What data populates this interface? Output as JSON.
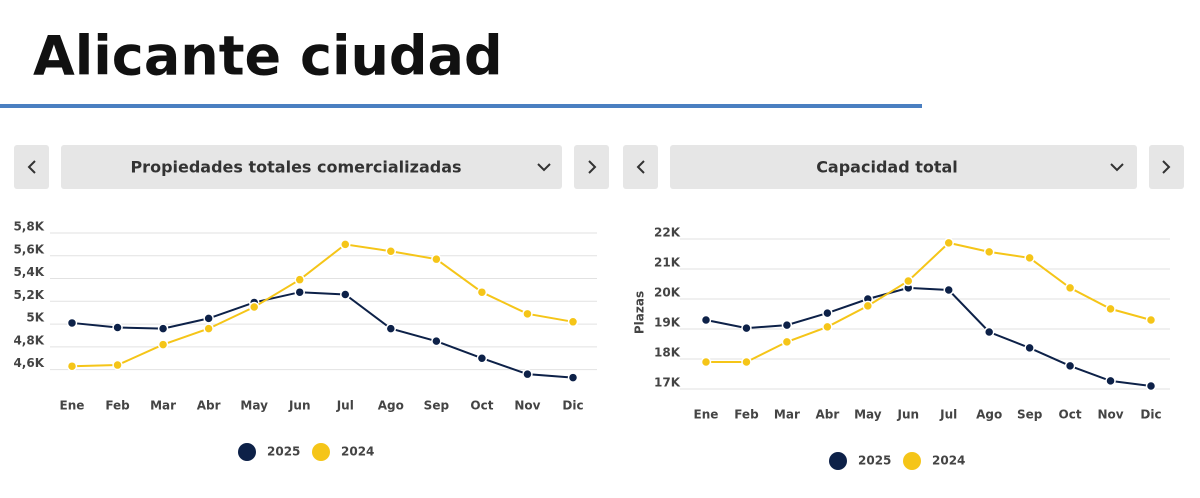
{
  "title": "Alicante ciudad",
  "chart_data": [
    {
      "type": "line",
      "title": "Propiedades totales comercializadas",
      "categories": [
        "Ene",
        "Feb",
        "Mar",
        "Abr",
        "May",
        "Jun",
        "Jul",
        "Ago",
        "Sep",
        "Oct",
        "Nov",
        "Dic"
      ],
      "series": [
        {
          "name": "2025",
          "color": "#0d2148",
          "values": [
            5010,
            4970,
            4960,
            5050,
            5190,
            5280,
            5260,
            4960,
            4850,
            4700,
            4560,
            4530
          ]
        },
        {
          "name": "2024",
          "color": "#f5c518",
          "values": [
            4630,
            4640,
            4820,
            4960,
            5150,
            5390,
            5700,
            5640,
            5570,
            5280,
            5090,
            5020
          ]
        }
      ],
      "ylim": [
        4500,
        5800
      ],
      "yticks": [
        {
          "value": 4600,
          "label": "4,6K"
        },
        {
          "value": 4800,
          "label": "4,8K"
        },
        {
          "value": 5000,
          "label": "5K"
        },
        {
          "value": 5200,
          "label": "5,2K"
        },
        {
          "value": 5400,
          "label": "5,4K"
        },
        {
          "value": 5600,
          "label": "5,6K"
        },
        {
          "value": 5800,
          "label": "5,8K"
        }
      ],
      "grid": true
    },
    {
      "type": "line",
      "title": "Capacidad total",
      "ylabel": "Plazas",
      "categories": [
        "Ene",
        "Feb",
        "Mar",
        "Abr",
        "May",
        "Jun",
        "Jul",
        "Ago",
        "Sep",
        "Oct",
        "Nov",
        "Dic"
      ],
      "series": [
        {
          "name": "2025",
          "color": "#0d2148",
          "values": [
            19300,
            19030,
            19130,
            19530,
            20000,
            20370,
            20300,
            18900,
            18370,
            17770,
            17270,
            17100
          ]
        },
        {
          "name": "2024",
          "color": "#f5c518",
          "values": [
            17900,
            17900,
            18570,
            19070,
            19770,
            20600,
            21870,
            21570,
            21370,
            20370,
            19670,
            19300
          ]
        }
      ],
      "ylim": [
        16800,
        22300
      ],
      "yticks": [
        {
          "value": 17000,
          "label": "17K"
        },
        {
          "value": 18000,
          "label": "18K"
        },
        {
          "value": 19000,
          "label": "19K"
        },
        {
          "value": 20000,
          "label": "20K"
        },
        {
          "value": 21000,
          "label": "21K"
        },
        {
          "value": 22000,
          "label": "22K"
        }
      ],
      "grid": true
    }
  ]
}
